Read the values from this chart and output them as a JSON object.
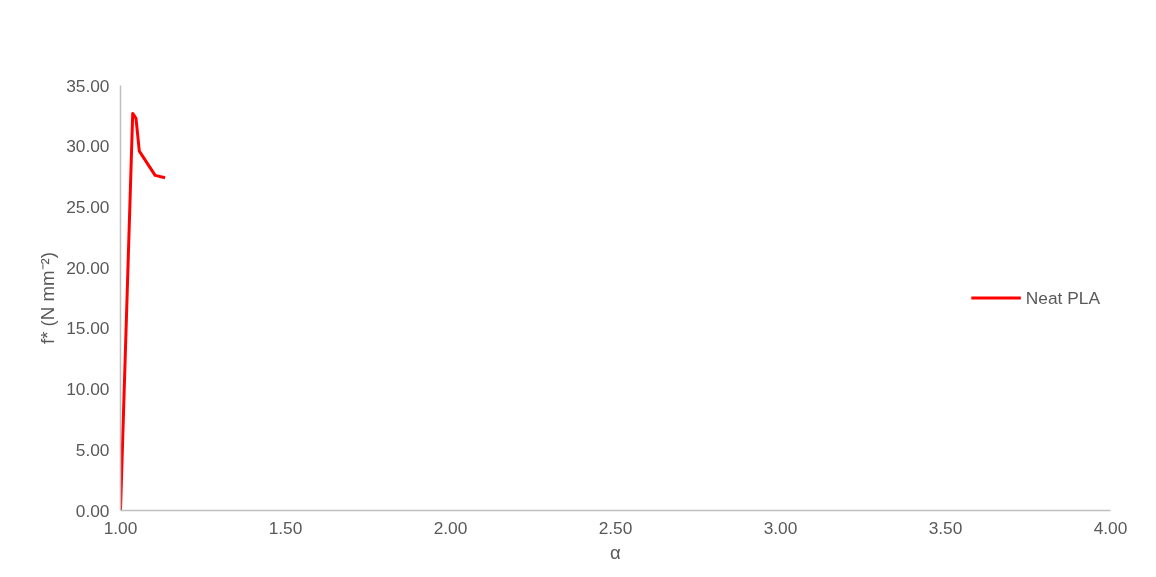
{
  "chart_data": {
    "type": "line",
    "xlabel": "α",
    "ylabel": "f* (N mm⁻²)",
    "xlim": [
      1.0,
      4.0
    ],
    "xticks": [
      {
        "value": 1.0,
        "label": "1.00"
      },
      {
        "value": 1.5,
        "label": "1.50"
      },
      {
        "value": 2.0,
        "label": "2.00"
      },
      {
        "value": 2.5,
        "label": "2.50"
      },
      {
        "value": 3.0,
        "label": "3.00"
      },
      {
        "value": 3.5,
        "label": "3.50"
      },
      {
        "value": 4.0,
        "label": "4.00"
      }
    ],
    "ylim": [
      0,
      35
    ],
    "yticks": [
      {
        "value": 0,
        "label": "0.00"
      },
      {
        "value": 5,
        "label": "5.00"
      },
      {
        "value": 10,
        "label": "10.00"
      },
      {
        "value": 15,
        "label": "15.00"
      },
      {
        "value": 20,
        "label": "20.00"
      },
      {
        "value": 25,
        "label": "25.00"
      },
      {
        "value": 30,
        "label": "30.00"
      },
      {
        "value": 35,
        "label": "35.00"
      }
    ],
    "grid": false,
    "legend": "right",
    "marker": "none",
    "line_style": "solid",
    "series": [
      {
        "name": "Neat PLA",
        "color": "#ff0000",
        "x": [
          1.0,
          1.037,
          1.047,
          1.057,
          1.105,
          1.135
        ],
        "values": [
          0,
          32.7,
          32.3,
          29.6,
          27.6,
          27.4
        ]
      }
    ]
  }
}
